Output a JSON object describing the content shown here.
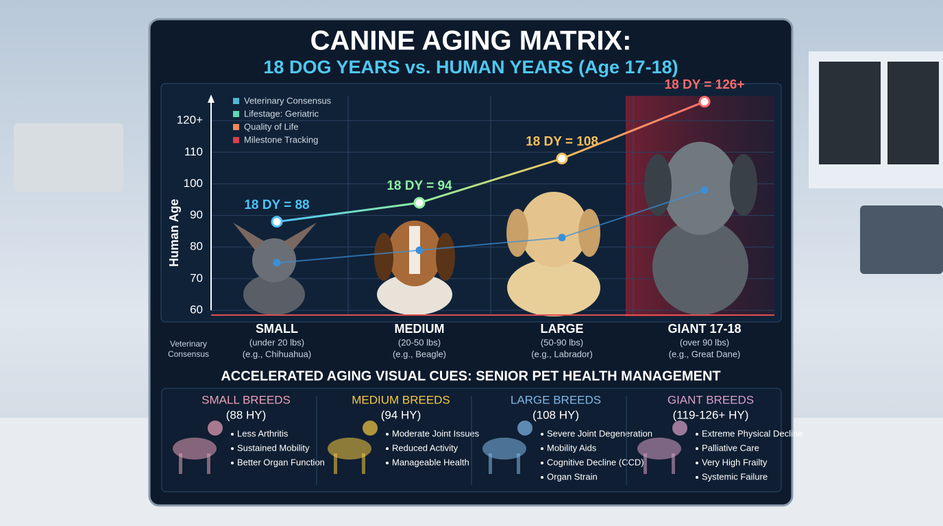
{
  "chart_data": {
    "type": "line",
    "title": "CANINE AGING MATRIX:",
    "subtitle": "18 DOG YEARS vs. HUMAN YEARS (Age 17-18)",
    "y_label": "Human Age",
    "side_note": "Veterinary Consensus",
    "categories": [
      "SMALL",
      "MEDIUM",
      "LARGE",
      "GIANT  17-18"
    ],
    "category_details": [
      [
        "(under 20 lbs)",
        "(e.g., Chihuahua)"
      ],
      [
        "(20-50 lbs)",
        "(e.g., Beagle)"
      ],
      [
        "(50-90 lbs)",
        "(e.g., Labrador)"
      ],
      [
        "(over 90 lbs)",
        "(e.g., Great Dane)"
      ]
    ],
    "series": [
      {
        "color": "#6fd0ff",
        "point_colors": [
          "#4fc3f7",
          "#8ef0a0",
          "#f5c05a",
          "#ff6b6b"
        ],
        "values": [
          88,
          94,
          108,
          126
        ],
        "value_labels": [
          "18 DY = 88",
          "18 DY = 94",
          "18 DY = 108",
          "18 DY = 126+"
        ]
      },
      {
        "color": "#3a8fd8",
        "values": [
          75,
          79,
          83,
          98
        ]
      }
    ],
    "legend": [
      {
        "label": "Veterinary Consensus",
        "color": "#4fb8d8"
      },
      {
        "label": "Lifestage: Geriatric",
        "color": "#5fd8b0"
      },
      {
        "label": "Quality of Life",
        "color": "#f08a5a"
      },
      {
        "label": "Milestone Tracking",
        "color": "#d84050"
      }
    ],
    "ylim": [
      60,
      130
    ],
    "yticks": [
      60,
      70,
      80,
      90,
      100,
      110,
      {
        "value": 120,
        "label": "120+"
      }
    ],
    "grid": true
  },
  "panel": {
    "heading": "ACCELERATED AGING VISUAL CUES: SENIOR PET HEALTH MANAGEMENT",
    "cards": [
      {
        "title": "SMALL BREEDS",
        "subtitle": "(88 HY)",
        "color": "#e8a0b8",
        "bullets": [
          "Less Arthritis",
          "Sustained Mobility",
          "Better Organ Function"
        ]
      },
      {
        "title": "MEDIUM BREEDS",
        "subtitle": "(94 HY)",
        "color": "#f5c842",
        "bullets": [
          "Moderate Joint Issues",
          "Reduced Activity",
          "Manageable Health"
        ]
      },
      {
        "title": "LARGE BREEDS",
        "subtitle": "(108 HY)",
        "color": "#7fb8e8",
        "bullets": [
          "Severe Joint Degeneration",
          "Mobility Aids",
          "Cognitive Decline (CCD)",
          "Organ Strain"
        ]
      },
      {
        "title": "GIANT BREEDS",
        "subtitle": "(119-126+ HY)",
        "color": "#d8a0c8",
        "bullets": [
          "Extreme Physical Decline",
          "Palliative Care",
          "Very High Frailty",
          "Systemic Failure"
        ]
      }
    ]
  }
}
